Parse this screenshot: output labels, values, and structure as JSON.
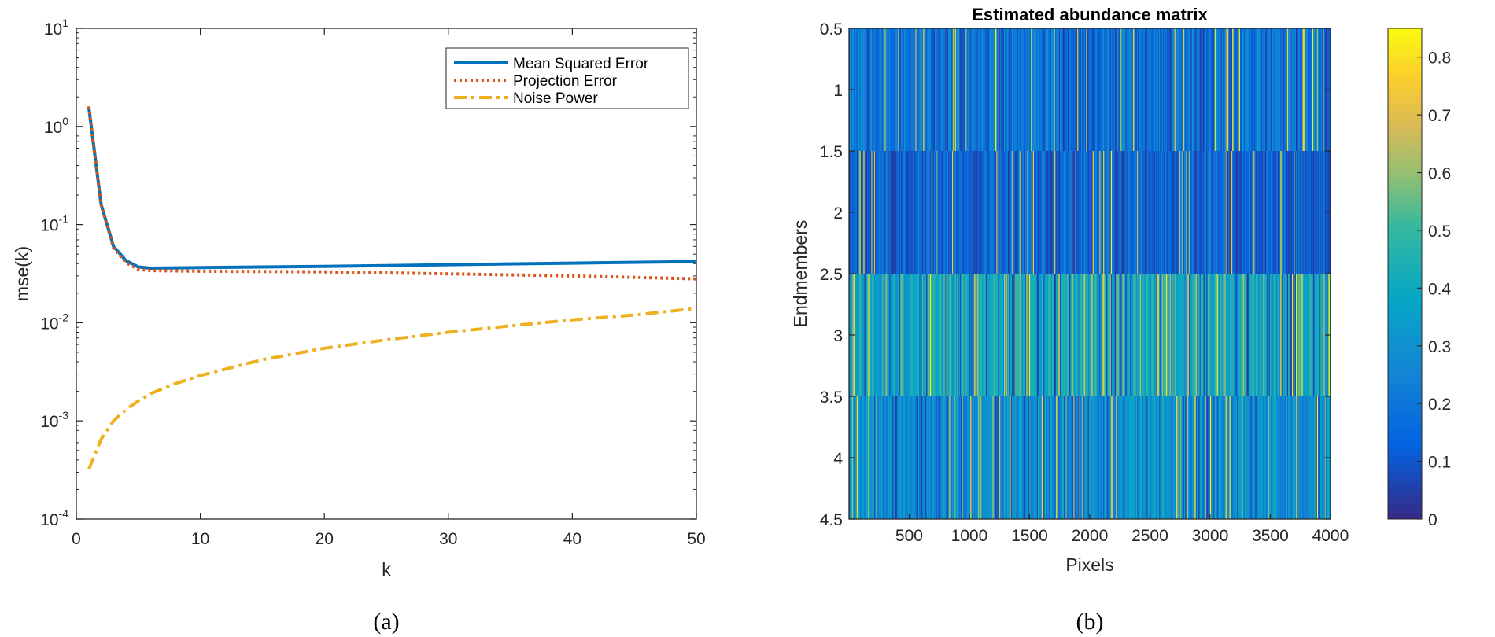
{
  "chart_data": [
    {
      "type": "line",
      "caption": "(a)",
      "xlabel": "k",
      "ylabel": "mse(k)",
      "xlim": [
        0,
        50
      ],
      "ylim": [
        0.0001,
        10
      ],
      "yscale": "log",
      "xticks": [
        "0",
        "10",
        "20",
        "30",
        "40",
        "50"
      ],
      "yticks": [
        {
          "base": "10",
          "exp": "1"
        },
        {
          "base": "10",
          "exp": "0"
        },
        {
          "base": "10",
          "exp": "-1"
        },
        {
          "base": "10",
          "exp": "-2"
        },
        {
          "base": "10",
          "exp": "-3"
        },
        {
          "base": "10",
          "exp": "-4"
        }
      ],
      "legend_position": "top-right",
      "series": [
        {
          "name": "Mean Squared Error",
          "color": "#0072bd",
          "style": "solid",
          "x": [
            1,
            2,
            3,
            4,
            5,
            6,
            10,
            20,
            30,
            40,
            50
          ],
          "y": [
            1.6,
            0.16,
            0.06,
            0.043,
            0.037,
            0.036,
            0.0365,
            0.0375,
            0.039,
            0.0405,
            0.042
          ]
        },
        {
          "name": "Projection Error",
          "color": "#d95319",
          "style": "dotted",
          "x": [
            1,
            2,
            3,
            4,
            5,
            6,
            10,
            20,
            30,
            40,
            50
          ],
          "y": [
            1.6,
            0.16,
            0.058,
            0.041,
            0.035,
            0.034,
            0.0335,
            0.033,
            0.0315,
            0.03,
            0.028
          ]
        },
        {
          "name": "Noise Power",
          "color": "#edb120",
          "style": "dashdot",
          "x": [
            1,
            2,
            3,
            4,
            5,
            6,
            8,
            10,
            15,
            20,
            25,
            30,
            35,
            40,
            45,
            50
          ],
          "y": [
            0.00032,
            0.00065,
            0.001,
            0.0013,
            0.0016,
            0.0019,
            0.0024,
            0.0029,
            0.0042,
            0.0055,
            0.0067,
            0.008,
            0.0093,
            0.0107,
            0.012,
            0.014
          ]
        }
      ]
    },
    {
      "type": "heatmap",
      "caption": "(b)",
      "title": "Estimated abundance matrix",
      "xlabel": "Pixels",
      "ylabel": "Endmembers",
      "xlim": [
        0.5,
        4000.5
      ],
      "ylim": [
        0.5,
        4.5
      ],
      "xticks": [
        "500",
        "1000",
        "1500",
        "2000",
        "2500",
        "3000",
        "3500",
        "4000"
      ],
      "yticks": [
        "0.5",
        "1",
        "1.5",
        "2",
        "2.5",
        "3",
        "3.5",
        "4",
        "4.5"
      ],
      "rows": 4,
      "columns": 4000,
      "row_typical_abundance": [
        0.2,
        0.15,
        0.4,
        0.3
      ],
      "colorbar": {
        "range": [
          0,
          0.85
        ],
        "ticks": [
          "0",
          "0.1",
          "0.2",
          "0.3",
          "0.4",
          "0.5",
          "0.6",
          "0.7",
          "0.8"
        ],
        "colormap": "parula"
      }
    }
  ]
}
